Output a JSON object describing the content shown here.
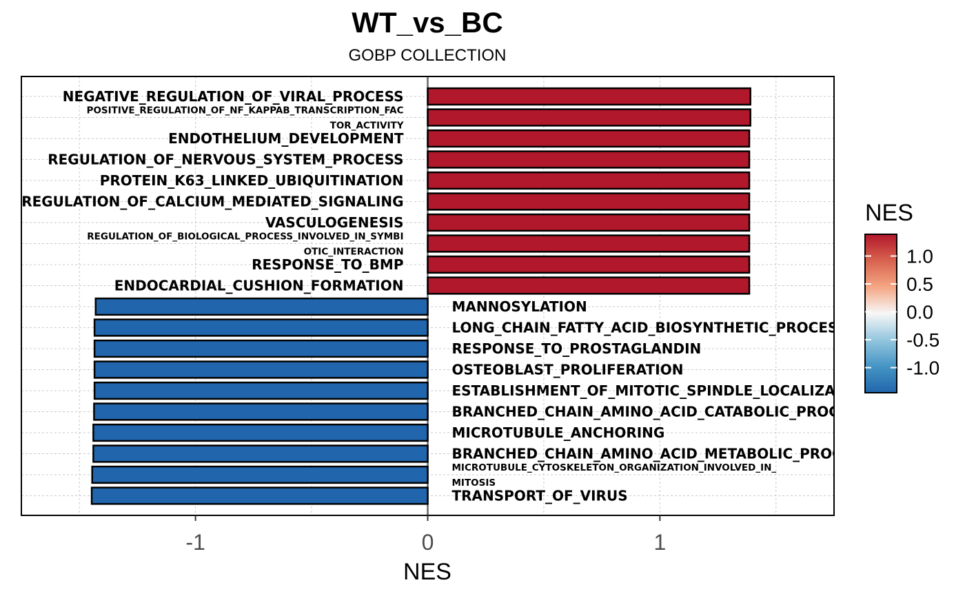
{
  "chart_data": {
    "type": "bar",
    "orientation": "horizontal",
    "title": "WT_vs_BC",
    "subtitle": "GOBP COLLECTION",
    "xlabel": "NES",
    "ylabel": "",
    "xlim": [
      -1.75,
      1.75
    ],
    "xticks": [
      {
        "value": -1,
        "label": "-1"
      },
      {
        "value": 0,
        "label": "0"
      },
      {
        "value": 1,
        "label": "1"
      }
    ],
    "grid": true,
    "bars": [
      {
        "label": [
          "NEGATIVE_REGULATION_OF_VIRAL_PROCESS"
        ],
        "value": 1.39
      },
      {
        "label": [
          "POSITIVE_REGULATION_OF_NF_KAPPAB_TRANSCRIPTION_FAC",
          "TOR_ACTIVITY"
        ],
        "value": 1.39
      },
      {
        "label": [
          "ENDOTHELIUM_DEVELOPMENT"
        ],
        "value": 1.385
      },
      {
        "label": [
          "REGULATION_OF_NERVOUS_SYSTEM_PROCESS"
        ],
        "value": 1.385
      },
      {
        "label": [
          "PROTEIN_K63_LINKED_UBIQUITINATION"
        ],
        "value": 1.385
      },
      {
        "label": [
          "REGULATION_OF_CALCIUM_MEDIATED_SIGNALING"
        ],
        "value": 1.385
      },
      {
        "label": [
          "VASCULOGENESIS"
        ],
        "value": 1.385
      },
      {
        "label": [
          "REGULATION_OF_BIOLOGICAL_PROCESS_INVOLVED_IN_SYMBI",
          "OTIC_INTERACTION"
        ],
        "value": 1.385
      },
      {
        "label": [
          "RESPONSE_TO_BMP"
        ],
        "value": 1.385
      },
      {
        "label": [
          "ENDOCARDIAL_CUSHION_FORMATION"
        ],
        "value": 1.385
      },
      {
        "label": [
          "MANNOSYLATION"
        ],
        "value": -1.43
      },
      {
        "label": [
          "LONG_CHAIN_FATTY_ACID_BIOSYNTHETIC_PROCESS"
        ],
        "value": -1.435
      },
      {
        "label": [
          "RESPONSE_TO_PROSTAGLANDIN"
        ],
        "value": -1.435
      },
      {
        "label": [
          "OSTEOBLAST_PROLIFERATION"
        ],
        "value": -1.435
      },
      {
        "label": [
          "ESTABLISHMENT_OF_MITOTIC_SPINDLE_LOCALIZATION"
        ],
        "value": -1.435
      },
      {
        "label": [
          "BRANCHED_CHAIN_AMINO_ACID_CATABOLIC_PROCESS"
        ],
        "value": -1.437
      },
      {
        "label": [
          "MICROTUBULE_ANCHORING"
        ],
        "value": -1.44
      },
      {
        "label": [
          "BRANCHED_CHAIN_AMINO_ACID_METABOLIC_PROCESS"
        ],
        "value": -1.44
      },
      {
        "label": [
          "MICROTUBULE_CYTOSKELETON_ORGANIZATION_INVOLVED_IN_",
          "MITOSIS"
        ],
        "value": -1.445
      },
      {
        "label": [
          "TRANSPORT_OF_VIRUS"
        ],
        "value": -1.447
      }
    ],
    "legend": {
      "title": "NES",
      "type": "colorbar",
      "placement": "right",
      "range": [
        -1.45,
        1.39
      ],
      "ticks": [
        {
          "value": 1.0,
          "label": "1.0"
        },
        {
          "value": 0.5,
          "label": "0.5"
        },
        {
          "value": 0.0,
          "label": "0.0"
        },
        {
          "value": -0.5,
          "label": "-0.5"
        },
        {
          "value": -1.0,
          "label": "-1.0"
        }
      ]
    },
    "colors": {
      "positive": "#b2182b",
      "negative": "#2166ac",
      "gradient": [
        "#2166ac",
        "#67a9cf",
        "#d1e5f0",
        "#f7f7f7",
        "#fddbc7",
        "#ef8a62",
        "#b2182b"
      ]
    }
  }
}
